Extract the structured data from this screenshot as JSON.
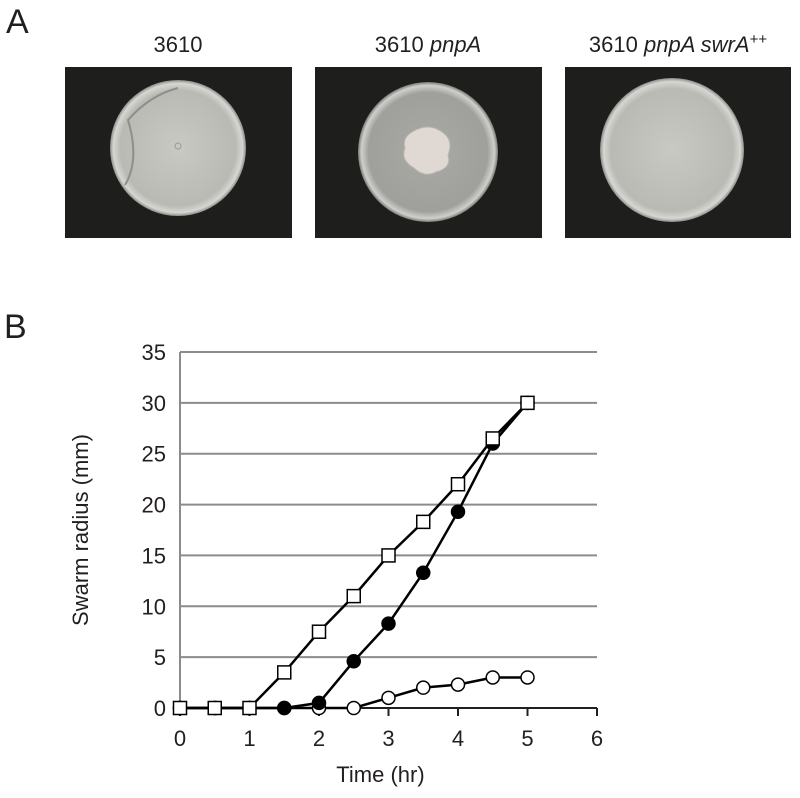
{
  "panel_a": {
    "label": "A",
    "plates": [
      {
        "strain": "3610"
      },
      {
        "strain": "3610",
        "genotype": "pnpA"
      },
      {
        "strain": "3610",
        "genotype": "pnpA swrA",
        "superscript": "++"
      }
    ]
  },
  "panel_b": {
    "label": "B"
  },
  "chart_data": {
    "type": "line",
    "x_label": "Time (hr)",
    "y_label": "Swarm radius (mm)",
    "x": [
      0,
      0.5,
      1,
      1.5,
      2,
      2.5,
      3,
      3.5,
      4,
      4.5,
      5
    ],
    "series": [
      {
        "color": "#000000",
        "marker": "circle",
        "filled": false,
        "values": [
          0,
          0,
          0,
          0,
          0,
          0,
          1,
          2,
          2.3,
          3,
          3
        ]
      },
      {
        "color": "#000000",
        "marker": "circle",
        "filled": true,
        "values": [
          0,
          0,
          0,
          0,
          0.5,
          4.6,
          8.3,
          13.3,
          19.3,
          26,
          30
        ]
      },
      {
        "color": "#000000",
        "marker": "square",
        "filled": false,
        "values": [
          0,
          0,
          0,
          3.5,
          7.5,
          11,
          15,
          18.3,
          22,
          26.5,
          30
        ]
      }
    ],
    "xlim": [
      0,
      6
    ],
    "xticks": [
      0,
      1,
      2,
      3,
      4,
      5,
      6
    ],
    "ylim": [
      0,
      35
    ],
    "yticks": [
      0,
      5,
      10,
      15,
      20,
      25,
      30,
      35
    ],
    "grid": true
  }
}
